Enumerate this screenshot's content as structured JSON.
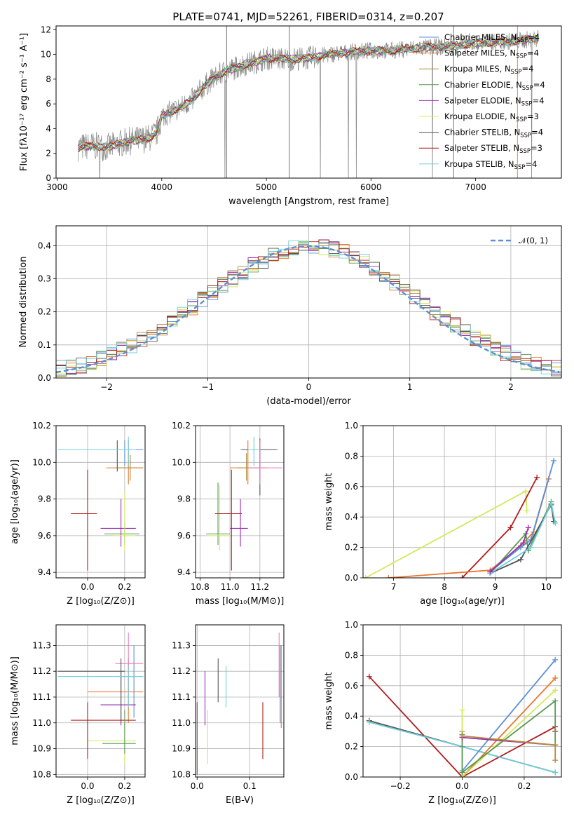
{
  "title": "PLATE=0741, MJD=52261, FIBERID=0314, z=0.207",
  "colors": {
    "Chabrier MILES": "#5b8fd6",
    "Salpeter MILES": "#e8762d",
    "Kroupa MILES": "#b58a3a",
    "Chabrier ELODIE": "#5a9a57",
    "Salpeter ELODIE": "#9b2fb3",
    "Kroupa ELODIE": "#d4e85c",
    "Chabrier STELIB": "#555555",
    "Salpeter STELIB": "#b01c1c",
    "Kroupa STELIB": "#6ecfd8",
    "extra": "#e87bbf"
  },
  "chart_data": [
    {
      "type": "line",
      "id": "spectrum",
      "xlabel": "wavelength [Angstrom, rest frame]",
      "ylabel": "Flux [fλ10⁻¹⁷ erg cm⁻² s⁻¹ A⁻¹]",
      "xlim": [
        2990,
        7820
      ],
      "ylim": [
        0,
        12.3
      ],
      "xticks": [
        "3000",
        "4000",
        "5000",
        "6000",
        "7000"
      ],
      "yticks": [
        "0",
        "2",
        "4",
        "6",
        "8",
        "10",
        "12"
      ],
      "legend_position": "top-right",
      "legend": [
        "Chabrier MILES, N_SSP=4",
        "Salpeter MILES, N_SSP=4",
        "Kroupa MILES, N_SSP=4",
        "Chabrier ELODIE, N_SSP=4",
        "Salpeter ELODIE, N_SSP=4",
        "Kroupa ELODIE, N_SSP=3",
        "Chabrier STELIB, N_SSP=4",
        "Salpeter STELIB, N_SSP=3",
        "Kroupa STELIB, N_SSP=4"
      ],
      "continuum": {
        "x": [
          3200,
          3350,
          3500,
          3600,
          3700,
          3800,
          3900,
          3950,
          4000,
          4100,
          4200,
          4300,
          4400,
          4500,
          4600,
          4700,
          4800,
          4900,
          5000,
          5200,
          5400,
          5600,
          5800,
          6000,
          6200,
          6400,
          6600,
          6800,
          7000,
          7200,
          7400,
          7600
        ],
        "y": [
          2.5,
          2.6,
          2.5,
          2.8,
          3.0,
          3.1,
          3.3,
          3.6,
          5.0,
          5.4,
          5.8,
          6.4,
          7.4,
          8.1,
          8.6,
          8.9,
          9.2,
          9.4,
          9.7,
          9.6,
          9.7,
          10.0,
          10.2,
          10.3,
          10.3,
          10.5,
          10.6,
          10.7,
          10.9,
          11.0,
          11.1,
          11.3
        ]
      }
    },
    {
      "type": "line",
      "id": "residuals",
      "xlabel": "(data-model)/error",
      "ylabel": "Normed distribution",
      "xlim": [
        -2.5,
        2.5
      ],
      "ylim": [
        0,
        0.46
      ],
      "xticks": [
        "−2",
        "−1",
        "0",
        "1",
        "2"
      ],
      "yticks": [
        "0.0",
        "0.1",
        "0.2",
        "0.3",
        "0.4"
      ],
      "grid": true,
      "legend_position": "top-right",
      "legend": [
        "𝒩(0, 1)"
      ],
      "bins": [
        -2.5,
        -2.4,
        -2.3,
        -2.2,
        -2.1,
        -2.0,
        -1.9,
        -1.8,
        -1.7,
        -1.6,
        -1.5,
        -1.4,
        -1.3,
        -1.2,
        -1.1,
        -1.0,
        -0.9,
        -0.8,
        -0.7,
        -0.6,
        -0.5,
        -0.4,
        -0.3,
        -0.2,
        -0.1,
        0.0,
        0.1,
        0.2,
        0.3,
        0.4,
        0.5,
        0.6,
        0.7,
        0.8,
        0.9,
        1.0,
        1.1,
        1.2,
        1.3,
        1.4,
        1.5,
        1.6,
        1.7,
        1.8,
        1.9,
        2.0,
        2.1,
        2.2,
        2.3,
        2.4,
        2.5
      ],
      "hist_base": [
        0.03,
        0.035,
        0.04,
        0.05,
        0.06,
        0.075,
        0.09,
        0.1,
        0.115,
        0.13,
        0.15,
        0.17,
        0.19,
        0.215,
        0.24,
        0.26,
        0.28,
        0.3,
        0.32,
        0.34,
        0.355,
        0.37,
        0.38,
        0.39,
        0.395,
        0.4,
        0.395,
        0.39,
        0.38,
        0.365,
        0.35,
        0.33,
        0.31,
        0.29,
        0.27,
        0.25,
        0.225,
        0.2,
        0.18,
        0.16,
        0.14,
        0.12,
        0.105,
        0.09,
        0.075,
        0.06,
        0.05,
        0.04,
        0.035,
        0.03
      ]
    },
    {
      "type": "scatter",
      "id": "age-vs-Z",
      "xlabel": "Z [log₁₀(Z/Z⊙)]",
      "ylabel": "age  [log₁₀(age/yr)]",
      "xlim": [
        -0.17,
        0.31
      ],
      "ylim": [
        9.37,
        10.2
      ],
      "xticks": [
        "0.0",
        "0.2"
      ],
      "yticks": [
        "9.4",
        "9.6",
        "9.8",
        "10.0",
        "10.2"
      ],
      "grid": true,
      "points": [
        {
          "s": "Chabrier MILES",
          "x": 0.2,
          "xl": 0.15,
          "xh": 0.3,
          "y": 10.07,
          "yl": 9.98,
          "yh": 10.12
        },
        {
          "s": "Salpeter MILES",
          "x": 0.22,
          "xl": 0.1,
          "xh": 0.3,
          "y": 9.97,
          "yl": 9.88,
          "yh": 10.12
        },
        {
          "s": "Kroupa MILES",
          "x": 0.23,
          "xl": 0.15,
          "xh": 0.3,
          "y": 9.97,
          "yl": 9.9,
          "yh": 10.04
        },
        {
          "s": "Chabrier ELODIE",
          "x": 0.2,
          "xl": 0.09,
          "xh": 0.28,
          "y": 9.61,
          "yl": 9.55,
          "yh": 9.67
        },
        {
          "s": "Salpeter ELODIE",
          "x": 0.18,
          "xl": 0.07,
          "xh": 0.26,
          "y": 9.64,
          "yl": 9.54,
          "yh": 9.8
        },
        {
          "s": "Kroupa ELODIE",
          "x": 0.2,
          "xl": 0.14,
          "xh": 0.26,
          "y": 9.6,
          "yl": 9.52,
          "yh": 9.84
        },
        {
          "s": "Chabrier STELIB",
          "x": 0.16,
          "xl": -0.16,
          "xh": 0.2,
          "y": 10.07,
          "yl": 9.95,
          "yh": 10.12
        },
        {
          "s": "Salpeter STELIB",
          "x": 0.0,
          "xl": -0.09,
          "xh": 0.05,
          "y": 9.72,
          "yl": 9.41,
          "yh": 9.96
        },
        {
          "s": "Kroupa STELIB",
          "x": 0.22,
          "xl": -0.16,
          "xh": 0.26,
          "y": 10.07,
          "yl": 9.98,
          "yh": 10.14
        }
      ]
    },
    {
      "type": "scatter",
      "id": "age-vs-mass",
      "xlabel": "mass [log₁₀(M/M⊙)]",
      "ylabel": "",
      "xlim": [
        10.77,
        11.36
      ],
      "ylim": [
        9.37,
        10.2
      ],
      "xticks": [
        "10.8",
        "11.0",
        "11.2"
      ],
      "yticks": [
        "9.4",
        "9.6",
        "9.8",
        "10.0",
        "10.2"
      ],
      "grid": true,
      "points": [
        {
          "s": "Chabrier MILES",
          "x": 11.2,
          "xl": 11.07,
          "xh": 11.32,
          "y": 10.07,
          "yl": 9.98,
          "yh": 10.12
        },
        {
          "s": "Salpeter MILES",
          "x": 11.12,
          "xl": 11.0,
          "xh": 11.25,
          "y": 9.97,
          "yl": 9.88,
          "yh": 10.12
        },
        {
          "s": "Kroupa MILES",
          "x": 11.11,
          "xl": 11.05,
          "xh": 11.2,
          "y": 9.97,
          "yl": 9.9,
          "yh": 10.05
        },
        {
          "s": "Chabrier ELODIE",
          "x": 10.92,
          "xl": 10.84,
          "xh": 11.0,
          "y": 9.61,
          "yl": 9.55,
          "yh": 9.89
        },
        {
          "s": "Salpeter ELODIE",
          "x": 11.07,
          "xl": 11.0,
          "xh": 11.12,
          "y": 9.64,
          "yl": 9.54,
          "yh": 9.8
        },
        {
          "s": "Kroupa ELODIE",
          "x": 10.93,
          "xl": 10.85,
          "xh": 11.0,
          "y": 9.6,
          "yl": 9.52,
          "yh": 9.88
        },
        {
          "s": "Chabrier STELIB",
          "x": 11.2,
          "xl": 11.08,
          "xh": 11.31,
          "y": 10.07,
          "yl": 9.82,
          "yh": 10.13
        },
        {
          "s": "Salpeter STELIB",
          "x": 11.01,
          "xl": 10.9,
          "xh": 11.08,
          "y": 9.72,
          "yl": 9.41,
          "yh": 9.96
        },
        {
          "s": "extra",
          "x": 11.2,
          "xl": 11.12,
          "xh": 11.35,
          "y": 9.97,
          "yl": 9.88,
          "yh": 10.12
        },
        {
          "s": "Kroupa STELIB",
          "x": 11.16,
          "xl": 11.12,
          "xh": 11.2,
          "y": 10.07,
          "yl": 9.98,
          "yh": 10.14
        }
      ]
    },
    {
      "type": "line",
      "id": "massweight-vs-age",
      "xlabel": "age  [log₁₀(age/yr)]",
      "ylabel": "mass weight",
      "xlim": [
        6.4,
        10.3
      ],
      "ylim": [
        0,
        1.0
      ],
      "xticks": [
        "7",
        "8",
        "9",
        "10"
      ],
      "yticks": [
        "0.0",
        "0.2",
        "0.4",
        "0.6",
        "0.8",
        "1.0"
      ],
      "grid": true,
      "series": [
        {
          "s": "Kroupa ELODIE",
          "x": [
            6.45,
            9.6,
            9.62
          ],
          "y": [
            0.0,
            0.57,
            0.44
          ]
        },
        {
          "s": "Salpeter STELIB",
          "x": [
            8.35,
            9.3,
            9.82
          ],
          "y": [
            0.0,
            0.33,
            0.66
          ]
        },
        {
          "s": "Salpeter MILES",
          "x": [
            6.9,
            8.9,
            9.5,
            9.75,
            10.05
          ],
          "y": [
            0.0,
            0.05,
            0.21,
            0.3,
            0.65
          ]
        },
        {
          "s": "Chabrier MILES",
          "x": [
            8.9,
            9.5,
            9.7,
            10.15
          ],
          "y": [
            0.04,
            0.2,
            0.25,
            0.77
          ]
        },
        {
          "s": "Chabrier ELODIE",
          "x": [
            8.9,
            9.6,
            9.65,
            10.1
          ],
          "y": [
            0.03,
            0.29,
            0.18,
            0.5
          ]
        },
        {
          "s": "Chabrier STELIB",
          "x": [
            8.9,
            9.5,
            10.1,
            10.15
          ],
          "y": [
            0.03,
            0.12,
            0.48,
            0.37
          ]
        },
        {
          "s": "Kroupa STELIB",
          "x": [
            8.9,
            9.7,
            10.1,
            10.18
          ],
          "y": [
            0.03,
            0.2,
            0.49,
            0.36
          ]
        },
        {
          "s": "Salpeter ELODIE",
          "x": [
            8.9,
            9.55,
            9.65
          ],
          "y": [
            0.04,
            0.23,
            0.33
          ]
        }
      ]
    },
    {
      "type": "scatter",
      "id": "mass-vs-Z",
      "xlabel": "Z [log₁₀(Z/Z⊙)]",
      "ylabel": "mass [log₁₀(M/M⊙)]",
      "xlim": [
        -0.17,
        0.31
      ],
      "ylim": [
        10.79,
        11.38
      ],
      "xticks": [
        "0.0",
        "0.2"
      ],
      "yticks": [
        "10.8",
        "10.9",
        "11.0",
        "11.1",
        "11.2",
        "11.3"
      ],
      "grid": true,
      "points": [
        {
          "s": "Chabrier MILES",
          "x": 0.25,
          "xl": 0.15,
          "xh": 0.3,
          "y": 11.18,
          "yl": 11.02,
          "yh": 11.3
        },
        {
          "s": "Salpeter MILES",
          "x": 0.22,
          "xl": 0.0,
          "xh": 0.3,
          "y": 11.12,
          "yl": 11.0,
          "yh": 11.25
        },
        {
          "s": "extra",
          "x": 0.22,
          "xl": 0.15,
          "xh": 0.3,
          "y": 11.23,
          "yl": 11.1,
          "yh": 11.35
        },
        {
          "s": "Salpeter ELODIE",
          "x": 0.18,
          "xl": 0.07,
          "xh": 0.26,
          "y": 11.07,
          "yl": 10.99,
          "yh": 11.2
        },
        {
          "s": "Kroupa ELODIE",
          "x": 0.2,
          "xl": -0.0,
          "xh": 0.26,
          "y": 10.93,
          "yl": 10.84,
          "yh": 11.0
        },
        {
          "s": "Chabrier STELIB",
          "x": 0.18,
          "xl": -0.16,
          "xh": 0.2,
          "y": 11.2,
          "yl": 11.0,
          "yh": 11.25
        },
        {
          "s": "Salpeter STELIB",
          "x": 0.0,
          "xl": -0.09,
          "xh": 0.26,
          "y": 11.01,
          "yl": 10.86,
          "yh": 11.08
        },
        {
          "s": "Chabrier ELODIE",
          "x": 0.2,
          "xl": 0.08,
          "xh": 0.26,
          "y": 10.92,
          "yl": 10.88,
          "yh": 11.05
        },
        {
          "s": "Kroupa STELIB",
          "x": 0.22,
          "xl": -0.16,
          "xh": 0.3,
          "y": 11.18,
          "yl": 11.06,
          "yh": 11.22
        }
      ]
    },
    {
      "type": "scatter",
      "id": "mass-vs-EBV",
      "xlabel": "E(B-V)",
      "ylabel": "",
      "xlim": [
        -0.003,
        0.165
      ],
      "ylim": [
        10.79,
        11.38
      ],
      "xticks": [
        "0.0",
        "0.1"
      ],
      "yticks": [
        "10.8",
        "10.9",
        "11.0",
        "11.1",
        "11.2",
        "11.3"
      ],
      "grid": true,
      "points": [
        {
          "s": "Chabrier STELIB",
          "x": 0.0,
          "yl": 10.8,
          "yh": 11.08
        },
        {
          "s": "Chabrier STELIB",
          "x": 0.04,
          "yl": 11.08,
          "yh": 11.25
        },
        {
          "s": "Salpeter ELODIE",
          "x": 0.015,
          "yl": 10.99,
          "yh": 11.2
        },
        {
          "s": "Kroupa ELODIE",
          "x": 0.02,
          "yl": 10.84,
          "yh": 11.05
        },
        {
          "s": "Kroupa STELIB",
          "x": 0.055,
          "yl": 11.06,
          "yh": 11.22
        },
        {
          "s": "Salpeter STELIB",
          "x": 0.125,
          "yl": 10.86,
          "yh": 11.08
        },
        {
          "s": "extra",
          "x": 0.156,
          "yl": 11.1,
          "yh": 11.35
        },
        {
          "s": "Salpeter MILES",
          "x": 0.16,
          "yl": 10.98,
          "yh": 11.3
        },
        {
          "s": "Chabrier MILES",
          "x": 0.158,
          "yl": 11.0,
          "yh": 11.3
        }
      ]
    },
    {
      "type": "line",
      "id": "massweight-vs-Z",
      "xlabel": "Z [log₁₀(Z/Z⊙)]",
      "ylabel": "mass weight",
      "xlim": [
        -0.32,
        0.32
      ],
      "ylim": [
        0,
        1.0
      ],
      "xticks": [
        "−0.2",
        "0.0",
        "0.2"
      ],
      "yticks": [
        "0.0",
        "0.2",
        "0.4",
        "0.6",
        "0.8",
        "1.0"
      ],
      "grid": true,
      "series": [
        {
          "s": "Salpeter STELIB",
          "x": [
            -0.3,
            0.0,
            0.3,
            0.3
          ],
          "y": [
            0.66,
            0.0,
            0.33,
            0.3
          ]
        },
        {
          "s": "Chabrier STELIB",
          "x": [
            -0.3,
            0.0,
            0.3
          ],
          "y": [
            0.37,
            0.2,
            0.03
          ]
        },
        {
          "s": "Kroupa STELIB",
          "x": [
            -0.3,
            0.0,
            0.3
          ],
          "y": [
            0.36,
            0.2,
            0.03
          ]
        },
        {
          "s": "Chabrier MILES",
          "x": [
            0.0,
            0.0,
            0.3
          ],
          "y": [
            0.2,
            0.04,
            0.77
          ]
        },
        {
          "s": "Salpeter MILES",
          "x": [
            0.0,
            0.0,
            0.3
          ],
          "y": [
            0.3,
            0.0,
            0.65
          ]
        },
        {
          "s": "Kroupa ELODIE",
          "x": [
            0.0,
            0.0,
            0.3
          ],
          "y": [
            0.44,
            0.0,
            0.57
          ]
        },
        {
          "s": "Chabrier ELODIE",
          "x": [
            0.0,
            0.0,
            0.3,
            0.3
          ],
          "y": [
            0.28,
            0.03,
            0.5,
            0.21
          ]
        },
        {
          "s": "Salpeter ELODIE",
          "x": [
            0.0,
            0.3
          ],
          "y": [
            0.26,
            0.21
          ]
        },
        {
          "s": "Kroupa MILES",
          "x": [
            0.0,
            0.3,
            0.3
          ],
          "y": [
            0.27,
            0.21,
            0.11
          ]
        }
      ]
    }
  ]
}
